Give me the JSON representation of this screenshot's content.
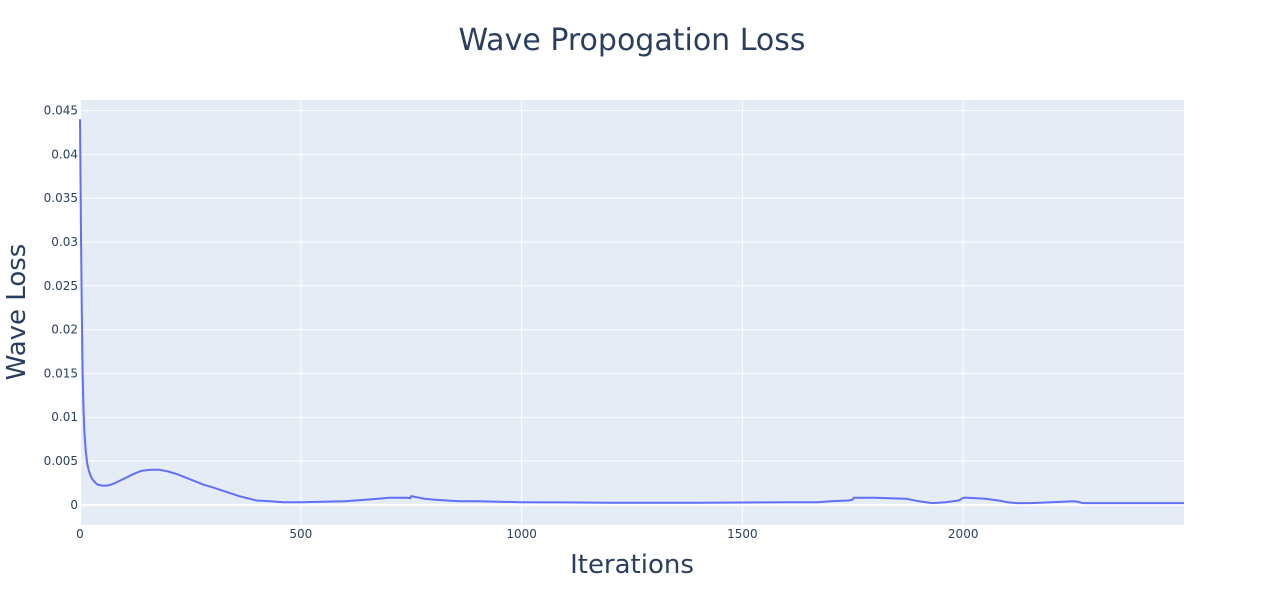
{
  "chart_data": {
    "type": "line",
    "title": "Wave Propogation Loss",
    "xlabel": "Iterations",
    "ylabel": "Wave Loss",
    "xlim": [
      0,
      2500
    ],
    "ylim": [
      -0.0023,
      0.0462
    ],
    "x_ticks": [
      0,
      500,
      1000,
      1500,
      2000
    ],
    "x_tick_labels": [
      "0",
      "500",
      "1000",
      "1500",
      "2000"
    ],
    "y_ticks": [
      0,
      0.005,
      0.01,
      0.015,
      0.02,
      0.025,
      0.03,
      0.035,
      0.04,
      0.045
    ],
    "y_tick_labels": [
      "0",
      "0.005",
      "0.01",
      "0.015",
      "0.02",
      "0.025",
      "0.03",
      "0.035",
      "0.04",
      "0.045"
    ],
    "grid": true,
    "colors": {
      "plot_bg": "#e5ecf6",
      "line": "#636efa",
      "grid": "#ffffff",
      "text": "#2a3f5f"
    },
    "series": [
      {
        "x": [
          0,
          2,
          4,
          6,
          8,
          10,
          13,
          16,
          20,
          25,
          30,
          35,
          40,
          50,
          60,
          70,
          80,
          100,
          120,
          140,
          160,
          180,
          200,
          220,
          250,
          280,
          300,
          330,
          360,
          400,
          430,
          460,
          500,
          550,
          600,
          650,
          700,
          740,
          748,
          750,
          760,
          780,
          800,
          830,
          860,
          900,
          1000,
          1100,
          1200,
          1300,
          1400,
          1500,
          1600,
          1670,
          1700,
          1740,
          1750,
          1752,
          1800,
          1870,
          1900,
          1930,
          1960,
          1990,
          2000,
          2010,
          2050,
          2080,
          2100,
          2120,
          2150,
          2200,
          2250,
          2260,
          2270,
          2300,
          2400,
          2500
        ],
        "y": [
          0.044,
          0.032,
          0.022,
          0.015,
          0.011,
          0.0083,
          0.0062,
          0.0048,
          0.0039,
          0.0032,
          0.0028,
          0.0025,
          0.0023,
          0.0022,
          0.0022,
          0.0023,
          0.0025,
          0.003,
          0.0035,
          0.0039,
          0.004,
          0.004,
          0.0038,
          0.0035,
          0.0029,
          0.0023,
          0.002,
          0.0015,
          0.001,
          0.0005,
          0.0004,
          0.0003,
          0.0003,
          0.00035,
          0.0004,
          0.0006,
          0.0008,
          0.0008,
          0.00075,
          0.001,
          0.0009,
          0.0007,
          0.0006,
          0.0005,
          0.0004,
          0.0004,
          0.0003,
          0.00028,
          0.00025,
          0.00023,
          0.00025,
          0.00027,
          0.0003,
          0.0003,
          0.0004,
          0.0005,
          0.0006,
          0.0008,
          0.0008,
          0.0007,
          0.0004,
          0.0002,
          0.0003,
          0.0005,
          0.0008,
          0.0008,
          0.0007,
          0.0005,
          0.0003,
          0.0002,
          0.0002,
          0.0003,
          0.0004,
          0.00035,
          0.0002,
          0.0002,
          0.0002,
          0.0002
        ]
      }
    ]
  }
}
